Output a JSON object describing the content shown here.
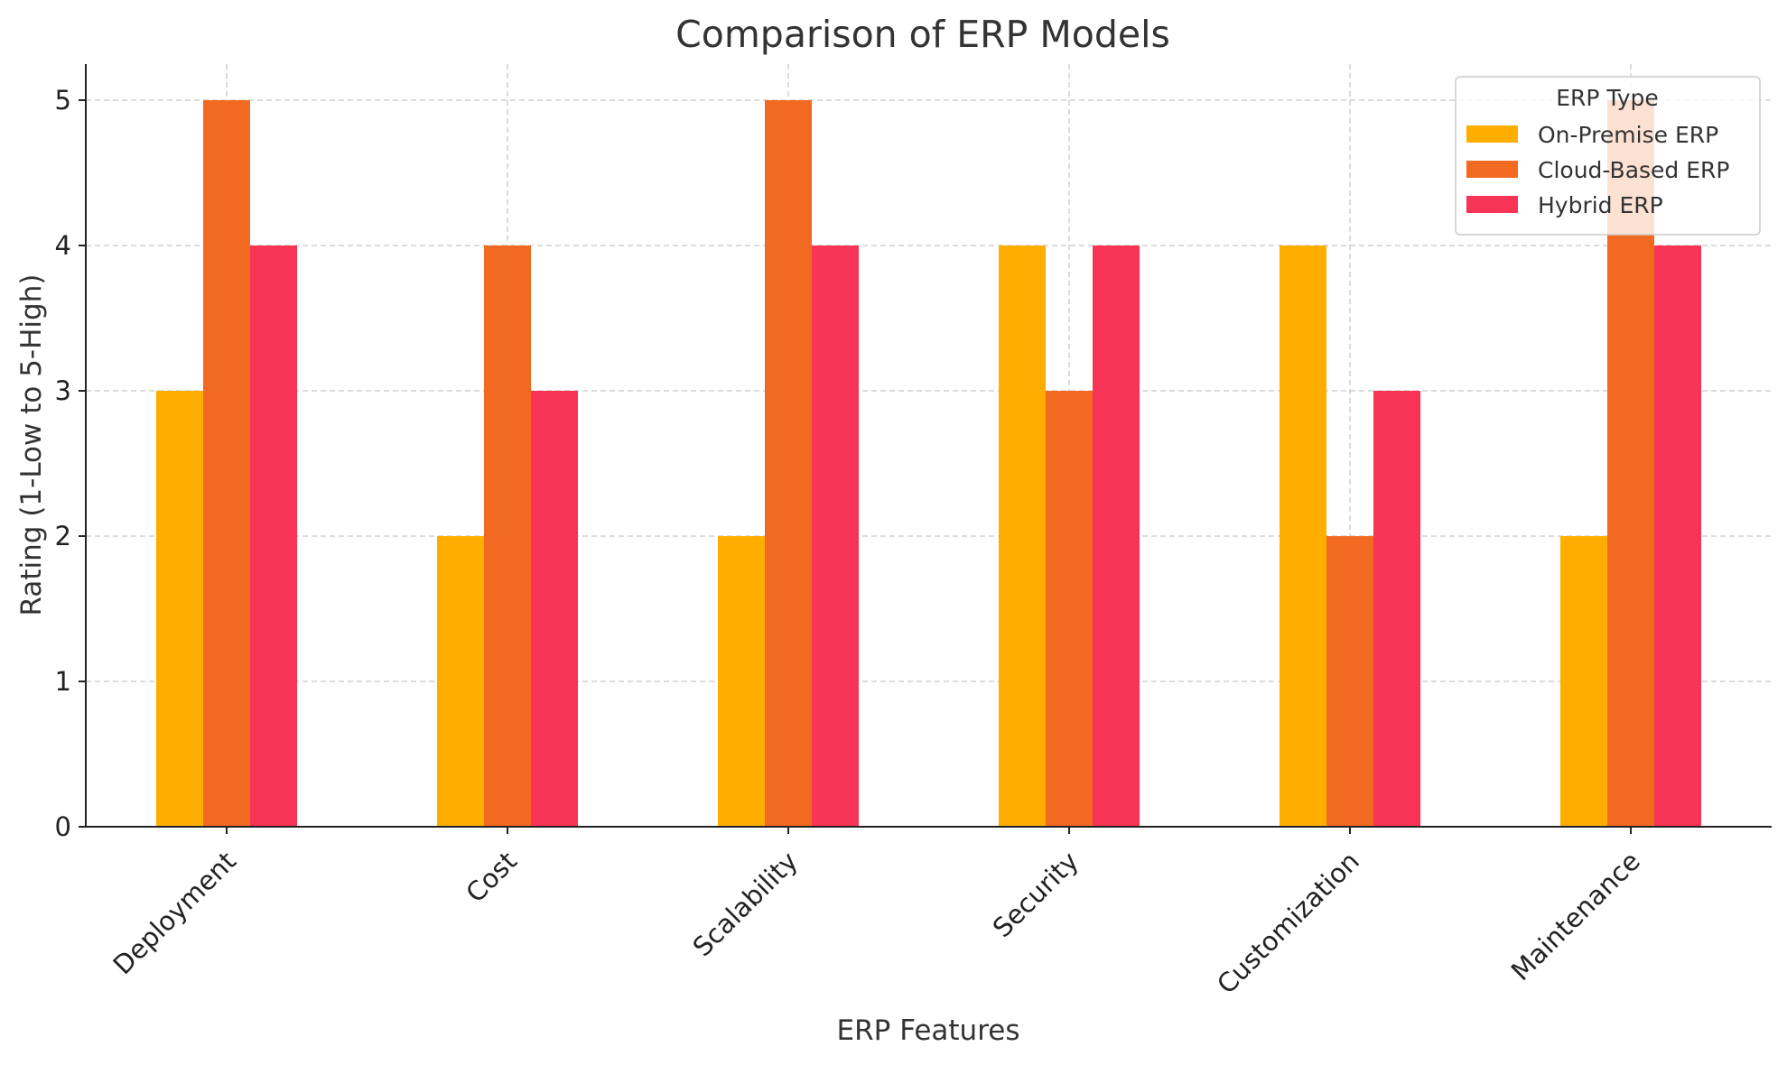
{
  "chart_data": {
    "type": "bar",
    "title": "Comparison of ERP Models",
    "xlabel": "ERP Features",
    "ylabel": "Rating (1-Low to 5-High)",
    "ylim": [
      0,
      5.25
    ],
    "yticks": [
      0,
      1,
      2,
      3,
      4,
      5
    ],
    "grid": true,
    "legend": {
      "title": "ERP Type",
      "position": "top-right"
    },
    "categories": [
      "Deployment",
      "Cost",
      "Scalability",
      "Security",
      "Customization",
      "Maintenance"
    ],
    "series": [
      {
        "name": "On-Premise ERP",
        "color": "#FFAE00",
        "values": [
          3,
          2,
          2,
          4,
          4,
          2
        ]
      },
      {
        "name": "Cloud-Based ERP",
        "color": "#F26A21",
        "values": [
          5,
          4,
          5,
          3,
          2,
          5
        ]
      },
      {
        "name": "Hybrid ERP",
        "color": "#F73455",
        "values": [
          4,
          3,
          4,
          4,
          3,
          4
        ]
      }
    ]
  }
}
